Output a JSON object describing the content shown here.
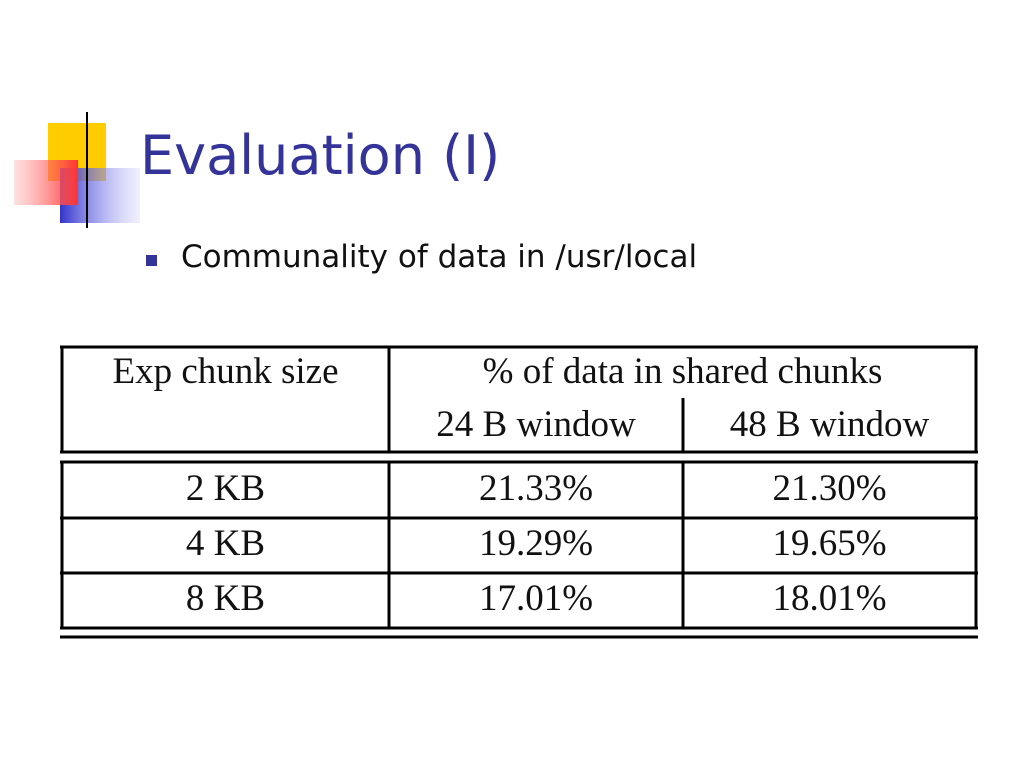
{
  "slide": {
    "title": "Evaluation (I)",
    "bullets": [
      "Communality of data in /usr/local"
    ]
  },
  "table": {
    "header": [
      "Exp chunk size",
      "% of data in shared chunks"
    ],
    "subheader": [
      "24 B window",
      "48 B window"
    ],
    "rows": [
      [
        "2 KB",
        "21.33%",
        "21.30%"
      ],
      [
        "4 KB",
        "19.29%",
        "19.65%"
      ],
      [
        "8 KB",
        "17.01%",
        "18.01%"
      ]
    ]
  }
}
